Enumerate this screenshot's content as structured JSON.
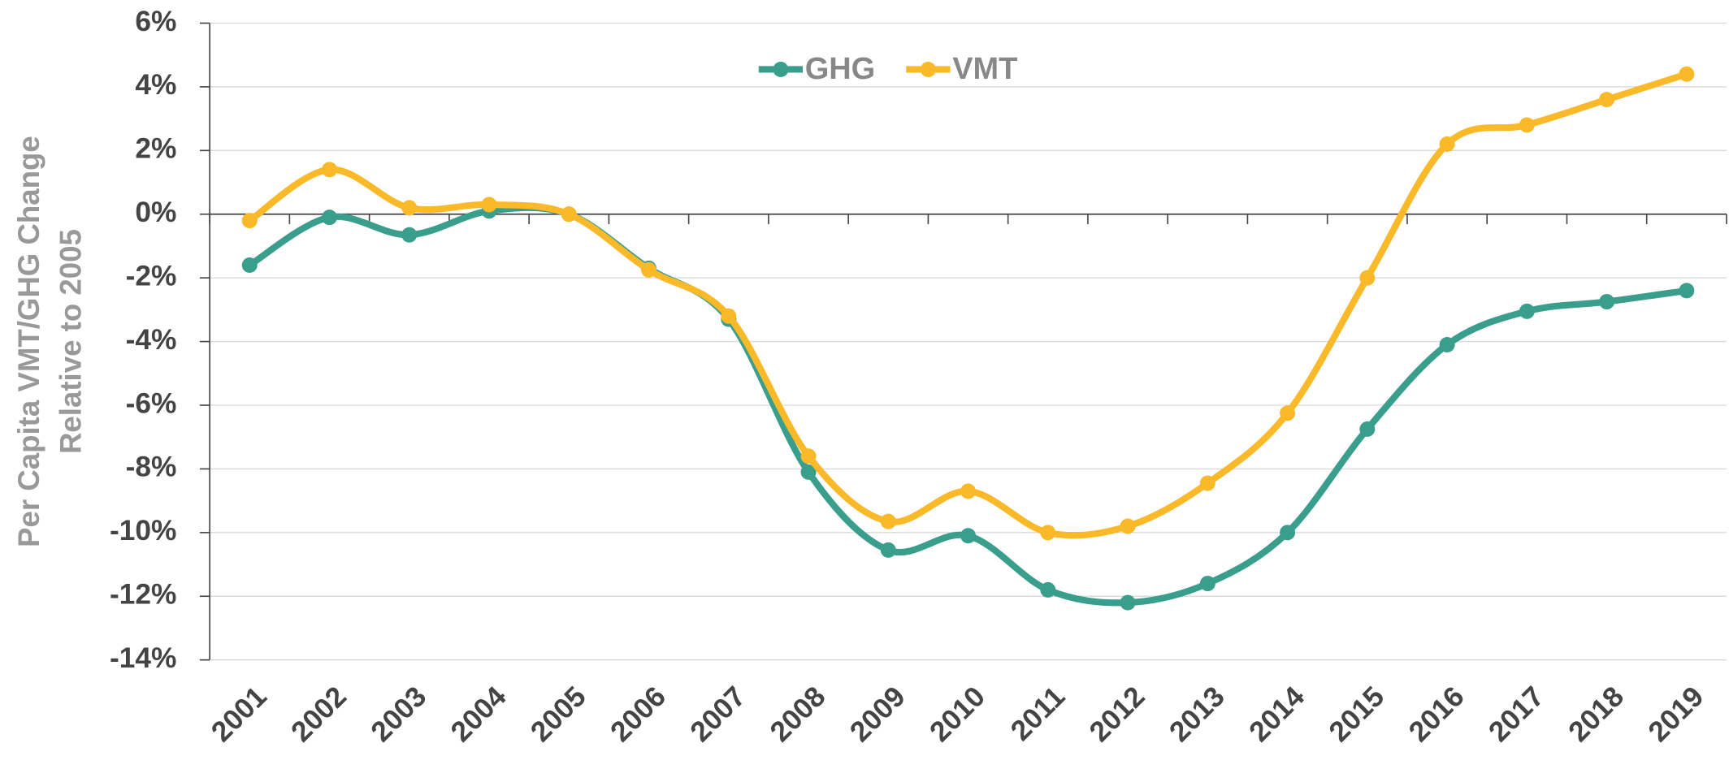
{
  "chart_data": {
    "type": "line",
    "y_label": [
      "Per Capita VMT/GHG Change",
      "Relative to 2005"
    ],
    "categories": [
      "2001",
      "2002",
      "2003",
      "2004",
      "2005",
      "2006",
      "2007",
      "2008",
      "2009",
      "2010",
      "2011",
      "2012",
      "2013",
      "2014",
      "2015",
      "2016",
      "2017",
      "2018",
      "2019"
    ],
    "series": [
      {
        "name": "GHG",
        "color": "#3a9e8c",
        "values": [
          -1.6,
          -0.1,
          -0.65,
          0.1,
          0,
          -1.7,
          -3.3,
          -8.1,
          -10.55,
          -10.1,
          -11.8,
          -12.2,
          -11.6,
          -10.0,
          -6.75,
          -4.1,
          -3.05,
          -2.75,
          -2.4
        ]
      },
      {
        "name": "VMT",
        "color": "#f9b928",
        "values": [
          -0.2,
          1.4,
          0.2,
          0.3,
          0,
          -1.75,
          -3.2,
          -7.6,
          -9.65,
          -8.7,
          -10.0,
          -9.8,
          -8.45,
          -6.25,
          -2.0,
          2.2,
          2.8,
          3.6,
          4.4
        ]
      }
    ],
    "ylim": [
      -14,
      6
    ],
    "yticks": [
      {
        "value": -14,
        "label": "-14%"
      },
      {
        "value": -12,
        "label": "-12%"
      },
      {
        "value": -10,
        "label": "-10%"
      },
      {
        "value": -8,
        "label": "-8%"
      },
      {
        "value": -6,
        "label": "-6%"
      },
      {
        "value": -4,
        "label": "-4%"
      },
      {
        "value": -2,
        "label": "-2%"
      },
      {
        "value": 0,
        "label": "0%"
      },
      {
        "value": 2,
        "label": "2%"
      },
      {
        "value": 4,
        "label": "4%"
      },
      {
        "value": 6,
        "label": "6%"
      }
    ],
    "grid": true,
    "smooth": true,
    "legend": "top"
  }
}
